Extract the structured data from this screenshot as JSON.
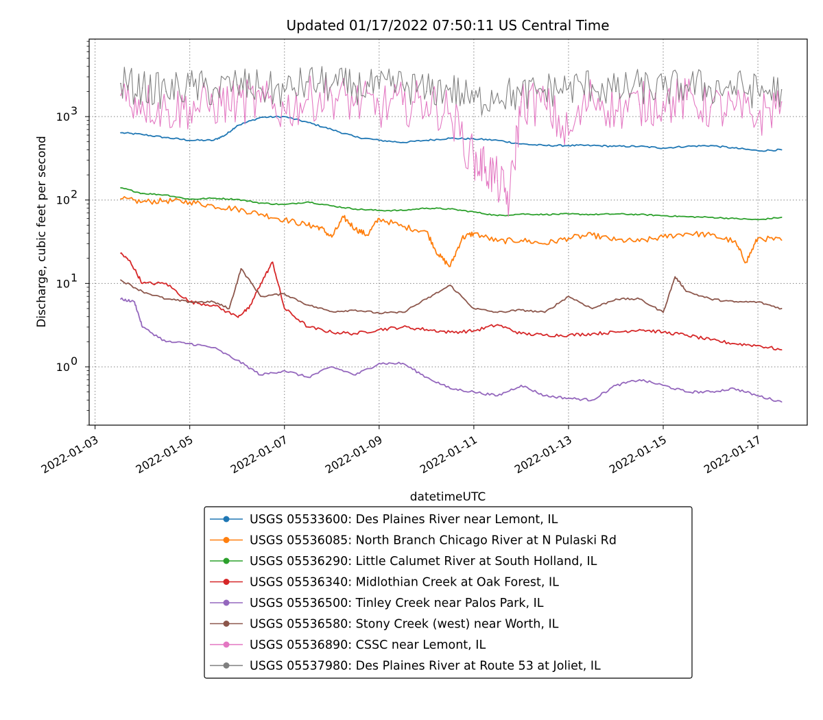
{
  "chart_data": {
    "type": "line",
    "title": "Updated 01/17/2022 07:50:11 US Central Time",
    "xlabel": "datetimeUTC",
    "ylabel": "Discharge, cubic feet per second",
    "yscale": "log",
    "ylim": [
      0.2,
      8500
    ],
    "xlim": [
      "2022-01-02T21:00",
      "2022-01-18T01:00"
    ],
    "x_ticks": [
      "2022-01-03",
      "2022-01-05",
      "2022-01-07",
      "2022-01-09",
      "2022-01-11",
      "2022-01-13",
      "2022-01-15",
      "2022-01-17"
    ],
    "y_ticks": [
      {
        "value": 1,
        "base": "10",
        "exp": "0"
      },
      {
        "value": 10,
        "base": "10",
        "exp": "1"
      },
      {
        "value": 100,
        "base": "10",
        "exp": "2"
      },
      {
        "value": 1000,
        "base": "10",
        "exp": "3"
      }
    ],
    "grid": true,
    "legend_position": "below",
    "series": [
      {
        "name": "USGS 05533600: Des Plaines River near Lemont, IL",
        "color": "#1f77b4",
        "x": [
          "2022-01-03T13:00",
          "2022-01-04T00:00",
          "2022-01-04T12:00",
          "2022-01-05T00:00",
          "2022-01-05T12:00",
          "2022-01-05T18:00",
          "2022-01-06T00:00",
          "2022-01-06T12:00",
          "2022-01-07T00:00",
          "2022-01-07T12:00",
          "2022-01-08T00:00",
          "2022-01-08T12:00",
          "2022-01-09T00:00",
          "2022-01-09T12:00",
          "2022-01-10T00:00",
          "2022-01-10T12:00",
          "2022-01-11T00:00",
          "2022-01-11T12:00",
          "2022-01-12T00:00",
          "2022-01-12T12:00",
          "2022-01-13T00:00",
          "2022-01-13T12:00",
          "2022-01-14T00:00",
          "2022-01-14T12:00",
          "2022-01-15T00:00",
          "2022-01-15T12:00",
          "2022-01-16T00:00",
          "2022-01-16T12:00",
          "2022-01-17T00:00",
          "2022-01-17T12:00"
        ],
        "y": [
          640,
          610,
          560,
          520,
          520,
          600,
          780,
          980,
          1000,
          850,
          700,
          570,
          520,
          490,
          520,
          550,
          540,
          520,
          470,
          450,
          450,
          450,
          440,
          440,
          420,
          440,
          450,
          420,
          390,
          400
        ]
      },
      {
        "name": "USGS 05536085: North Branch Chicago River at N Pulaski Rd",
        "color": "#ff7f0e",
        "x": [
          "2022-01-03T13:00",
          "2022-01-04T00:00",
          "2022-01-04T12:00",
          "2022-01-05T00:00",
          "2022-01-05T12:00",
          "2022-01-06T00:00",
          "2022-01-06T12:00",
          "2022-01-07T00:00",
          "2022-01-07T12:00",
          "2022-01-07T18:00",
          "2022-01-08T00:00",
          "2022-01-08T06:00",
          "2022-01-08T12:00",
          "2022-01-08T18:00",
          "2022-01-09T00:00",
          "2022-01-09T12:00",
          "2022-01-10T00:00",
          "2022-01-10T06:00",
          "2022-01-10T12:00",
          "2022-01-10T18:00",
          "2022-01-11T00:00",
          "2022-01-11T12:00",
          "2022-01-12T00:00",
          "2022-01-12T12:00",
          "2022-01-13T00:00",
          "2022-01-13T12:00",
          "2022-01-14T00:00",
          "2022-01-14T12:00",
          "2022-01-15T00:00",
          "2022-01-15T12:00",
          "2022-01-16T00:00",
          "2022-01-16T12:00",
          "2022-01-16T18:00",
          "2022-01-17T00:00",
          "2022-01-17T12:00"
        ],
        "y": [
          103,
          95,
          98,
          95,
          85,
          78,
          68,
          58,
          50,
          47,
          36,
          62,
          45,
          38,
          60,
          48,
          42,
          22,
          16,
          35,
          40,
          32,
          33,
          30,
          35,
          38,
          33,
          32,
          36,
          40,
          38,
          32,
          18,
          35,
          33
        ]
      },
      {
        "name": "USGS 05536290: Little Calumet River at South Holland, IL",
        "color": "#2ca02c",
        "x": [
          "2022-01-03T13:00",
          "2022-01-04T00:00",
          "2022-01-04T12:00",
          "2022-01-05T00:00",
          "2022-01-05T12:00",
          "2022-01-06T00:00",
          "2022-01-06T12:00",
          "2022-01-07T00:00",
          "2022-01-07T12:00",
          "2022-01-08T00:00",
          "2022-01-08T12:00",
          "2022-01-09T00:00",
          "2022-01-09T12:00",
          "2022-01-10T00:00",
          "2022-01-10T12:00",
          "2022-01-11T00:00",
          "2022-01-11T12:00",
          "2022-01-12T00:00",
          "2022-01-12T12:00",
          "2022-01-13T00:00",
          "2022-01-13T12:00",
          "2022-01-14T00:00",
          "2022-01-14T12:00",
          "2022-01-15T00:00",
          "2022-01-15T12:00",
          "2022-01-16T00:00",
          "2022-01-16T12:00",
          "2022-01-17T00:00",
          "2022-01-17T12:00"
        ],
        "y": [
          140,
          120,
          115,
          102,
          105,
          102,
          92,
          88,
          95,
          85,
          78,
          75,
          75,
          80,
          78,
          72,
          65,
          68,
          67,
          68,
          67,
          68,
          67,
          65,
          63,
          62,
          60,
          58,
          62
        ]
      },
      {
        "name": "USGS 05536340: Midlothian Creek at Oak Forest, IL",
        "color": "#d62728",
        "x": [
          "2022-01-03T13:00",
          "2022-01-03T18:00",
          "2022-01-04T00:00",
          "2022-01-04T12:00",
          "2022-01-05T00:00",
          "2022-01-05T12:00",
          "2022-01-06T00:00",
          "2022-01-06T06:00",
          "2022-01-06T12:00",
          "2022-01-06T18:00",
          "2022-01-07T00:00",
          "2022-01-07T12:00",
          "2022-01-08T00:00",
          "2022-01-08T12:00",
          "2022-01-09T00:00",
          "2022-01-09T12:00",
          "2022-01-10T00:00",
          "2022-01-10T12:00",
          "2022-01-11T00:00",
          "2022-01-11T12:00",
          "2022-01-12T00:00",
          "2022-01-12T12:00",
          "2022-01-13T00:00",
          "2022-01-13T12:00",
          "2022-01-14T00:00",
          "2022-01-14T12:00",
          "2022-01-15T00:00",
          "2022-01-15T12:00",
          "2022-01-16T00:00",
          "2022-01-16T12:00",
          "2022-01-17T00:00",
          "2022-01-17T12:00"
        ],
        "y": [
          23,
          18,
          10,
          10,
          6,
          5.5,
          4,
          5,
          10,
          18,
          5,
          3,
          2.6,
          2.5,
          2.8,
          3,
          2.8,
          2.6,
          2.7,
          3.2,
          2.5,
          2.4,
          2.4,
          2.5,
          2.6,
          2.8,
          2.6,
          2.4,
          2.1,
          1.9,
          1.8,
          1.6
        ]
      },
      {
        "name": "USGS 05536500: Tinley Creek near Palos Park, IL",
        "color": "#9467bd",
        "x": [
          "2022-01-03T13:00",
          "2022-01-03T20:00",
          "2022-01-04T00:00",
          "2022-01-04T12:00",
          "2022-01-05T00:00",
          "2022-01-05T12:00",
          "2022-01-06T00:00",
          "2022-01-06T12:00",
          "2022-01-07T00:00",
          "2022-01-07T12:00",
          "2022-01-08T00:00",
          "2022-01-08T12:00",
          "2022-01-09T00:00",
          "2022-01-09T12:00",
          "2022-01-10T00:00",
          "2022-01-10T12:00",
          "2022-01-11T00:00",
          "2022-01-11T12:00",
          "2022-01-12T00:00",
          "2022-01-12T12:00",
          "2022-01-13T00:00",
          "2022-01-13T12:00",
          "2022-01-14T00:00",
          "2022-01-14T12:00",
          "2022-01-15T00:00",
          "2022-01-15T12:00",
          "2022-01-16T00:00",
          "2022-01-16T12:00",
          "2022-01-17T00:00",
          "2022-01-17T12:00"
        ],
        "y": [
          6.5,
          6,
          3,
          2,
          1.9,
          1.7,
          1.2,
          0.8,
          0.9,
          0.75,
          1.0,
          0.8,
          1.1,
          1.1,
          0.75,
          0.55,
          0.5,
          0.45,
          0.6,
          0.45,
          0.42,
          0.4,
          0.6,
          0.7,
          0.6,
          0.5,
          0.5,
          0.55,
          0.45,
          0.38
        ]
      },
      {
        "name": "USGS 05536580: Stony Creek (west) near Worth, IL",
        "color": "#8c564b",
        "x": [
          "2022-01-03T13:00",
          "2022-01-04T00:00",
          "2022-01-04T12:00",
          "2022-01-05T00:00",
          "2022-01-05T12:00",
          "2022-01-05T20:00",
          "2022-01-06T02:00",
          "2022-01-06T12:00",
          "2022-01-07T00:00",
          "2022-01-07T12:00",
          "2022-01-08T00:00",
          "2022-01-08T12:00",
          "2022-01-09T00:00",
          "2022-01-09T12:00",
          "2022-01-10T00:00",
          "2022-01-10T12:00",
          "2022-01-11T00:00",
          "2022-01-11T12:00",
          "2022-01-12T00:00",
          "2022-01-12T12:00",
          "2022-01-13T00:00",
          "2022-01-13T12:00",
          "2022-01-14T00:00",
          "2022-01-14T12:00",
          "2022-01-15T00:00",
          "2022-01-15T06:00",
          "2022-01-15T12:00",
          "2022-01-16T00:00",
          "2022-01-16T12:00",
          "2022-01-17T00:00",
          "2022-01-17T12:00"
        ],
        "y": [
          11,
          8,
          6.5,
          6,
          6,
          5,
          15,
          7,
          7.5,
          5.5,
          4.6,
          4.8,
          4.4,
          4.5,
          6.5,
          9.5,
          5,
          4.5,
          4.8,
          4.5,
          7,
          5,
          6.5,
          6.5,
          4.5,
          12,
          8,
          6.5,
          6,
          6,
          5
        ]
      },
      {
        "name": "USGS 05536890: CSSC near Lemont, IL",
        "color": "#e377c2",
        "x": [
          "2022-01-03T13:00",
          "2022-01-04T00:00",
          "2022-01-04T12:00",
          "2022-01-05T00:00",
          "2022-01-05T12:00",
          "2022-01-06T00:00",
          "2022-01-06T12:00",
          "2022-01-07T00:00",
          "2022-01-07T12:00",
          "2022-01-08T00:00",
          "2022-01-08T12:00",
          "2022-01-09T00:00",
          "2022-01-09T12:00",
          "2022-01-10T00:00",
          "2022-01-10T12:00",
          "2022-01-11T00:00",
          "2022-01-11T06:00",
          "2022-01-11T12:00",
          "2022-01-11T18:00",
          "2022-01-12T00:00",
          "2022-01-12T12:00",
          "2022-01-13T00:00",
          "2022-01-13T12:00",
          "2022-01-14T00:00",
          "2022-01-14T12:00",
          "2022-01-15T00:00",
          "2022-01-15T12:00",
          "2022-01-16T00:00",
          "2022-01-16T12:00",
          "2022-01-17T00:00",
          "2022-01-17T12:00"
        ],
        "y": [
          1800,
          1500,
          1200,
          1300,
          1400,
          1500,
          1500,
          1200,
          1600,
          1800,
          1500,
          1300,
          1400,
          1500,
          1100,
          300,
          250,
          170,
          100,
          1500,
          1400,
          600,
          1800,
          1200,
          1400,
          1500,
          1600,
          1300,
          1200,
          1000,
          1500
        ]
      },
      {
        "name": "USGS 05537980: Des Plaines River at Route 53 at Joliet, IL",
        "color": "#7f7f7f",
        "x": [
          "2022-01-03T13:00",
          "2022-01-04T00:00",
          "2022-01-04T12:00",
          "2022-01-05T00:00",
          "2022-01-05T12:00",
          "2022-01-06T00:00",
          "2022-01-06T12:00",
          "2022-01-07T00:00",
          "2022-01-07T12:00",
          "2022-01-08T00:00",
          "2022-01-08T12:00",
          "2022-01-09T00:00",
          "2022-01-09T12:00",
          "2022-01-10T00:00",
          "2022-01-10T12:00",
          "2022-01-11T00:00",
          "2022-01-11T12:00",
          "2022-01-12T00:00",
          "2022-01-12T12:00",
          "2022-01-13T00:00",
          "2022-01-13T12:00",
          "2022-01-14T00:00",
          "2022-01-14T12:00",
          "2022-01-15T00:00",
          "2022-01-15T12:00",
          "2022-01-16T00:00",
          "2022-01-16T12:00",
          "2022-01-17T00:00",
          "2022-01-17T12:00"
        ],
        "y": [
          2500,
          2200,
          2000,
          2300,
          2100,
          2400,
          2200,
          2000,
          2600,
          2400,
          2300,
          2200,
          2400,
          2000,
          2200,
          1500,
          1900,
          1800,
          2100,
          2200,
          2400,
          2000,
          2300,
          2100,
          2400,
          2200,
          2300,
          2000,
          2100
        ]
      }
    ]
  }
}
